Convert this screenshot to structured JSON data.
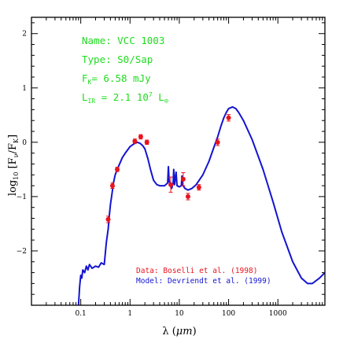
{
  "chart_data": {
    "type": "line",
    "xscale": "log",
    "xlim": [
      0.01,
      9000
    ],
    "ylim": [
      -3.0,
      2.3
    ],
    "xlabel": {
      "pre": "λ (",
      "unit": "μm",
      "post": ")"
    },
    "ylabel": {
      "pre": "log",
      "sub1": "10",
      "mid": " [F",
      "sub2": "ν",
      "slash": "/F",
      "sub3": "K",
      "post": "]"
    },
    "x_tick_labels": [
      {
        "value": 0.1,
        "label": "0.1"
      },
      {
        "value": 1,
        "label": "1"
      },
      {
        "value": 10,
        "label": "10"
      },
      {
        "value": 100,
        "label": "100"
      },
      {
        "value": 1000,
        "label": "1000"
      }
    ],
    "y_tick_labels": [
      {
        "value": 2,
        "label": "2"
      },
      {
        "value": 1,
        "label": "1"
      },
      {
        "value": 0,
        "label": "0"
      },
      {
        "value": -1,
        "label": "−1"
      },
      {
        "value": -2,
        "label": "−2"
      }
    ],
    "annotations": {
      "name": "Name: VCC 1003",
      "type": "Type: S0/Sap",
      "flux": {
        "pre": "F",
        "sub": "K",
        "post": "= 6.58 mJy"
      },
      "lir": {
        "pre": "L",
        "sub": "IR",
        "mid": " = 2.1 10",
        "sup": "7",
        "post": " L",
        "sub2": "⊙"
      }
    },
    "credits": {
      "data": "Data: Boselli et al. (1998)",
      "model": "Model: Devriendt et al. (1999)"
    },
    "colors": {
      "data": "#e8141e",
      "model": "#1414d2",
      "annot": "#1fdc1f",
      "axis": "#000000"
    },
    "series": [
      {
        "kind": "model",
        "x": [
          0.09,
          0.095,
          0.1,
          0.105,
          0.11,
          0.12,
          0.13,
          0.14,
          0.15,
          0.17,
          0.2,
          0.23,
          0.26,
          0.3,
          0.33,
          0.36,
          0.38,
          0.4,
          0.43,
          0.46,
          0.5,
          0.55,
          0.6,
          0.7,
          0.8,
          1.0,
          1.2,
          1.4,
          1.6,
          1.8,
          2.0,
          2.3,
          2.6,
          3.0,
          3.5,
          4.0,
          5.0,
          5.8,
          6.0,
          6.2,
          6.5,
          7.0,
          7.5,
          7.7,
          8.0,
          8.6,
          9.0,
          10.0,
          11.0,
          11.3,
          11.6,
          12.0,
          13.0,
          15.0,
          18.0,
          22.0,
          30.0,
          40.0,
          50.0,
          60.0,
          70.0,
          80.0,
          90.0,
          100.0,
          120.0,
          140.0,
          160.0,
          200.0,
          300.0,
          500.0,
          800.0,
          1200.0,
          2000.0,
          3000.0,
          4000.0,
          5000.0,
          7000.0,
          9000.0
        ],
        "y": [
          -3.0,
          -2.65,
          -2.45,
          -2.5,
          -2.35,
          -2.4,
          -2.28,
          -2.35,
          -2.25,
          -2.32,
          -2.28,
          -2.3,
          -2.22,
          -2.25,
          -1.85,
          -1.6,
          -1.35,
          -1.15,
          -0.95,
          -0.75,
          -0.6,
          -0.5,
          -0.42,
          -0.28,
          -0.2,
          -0.08,
          -0.03,
          0.0,
          -0.02,
          -0.06,
          -0.12,
          -0.3,
          -0.5,
          -0.7,
          -0.78,
          -0.8,
          -0.8,
          -0.75,
          -0.45,
          -0.7,
          -0.8,
          -0.85,
          -0.75,
          -0.5,
          -0.78,
          -0.55,
          -0.8,
          -0.82,
          -0.8,
          -0.62,
          -0.78,
          -0.8,
          -0.85,
          -0.88,
          -0.85,
          -0.78,
          -0.6,
          -0.35,
          -0.1,
          0.1,
          0.3,
          0.45,
          0.55,
          0.62,
          0.65,
          0.62,
          0.55,
          0.4,
          0.05,
          -0.5,
          -1.1,
          -1.65,
          -2.2,
          -2.5,
          -2.6,
          -2.6,
          -2.5,
          -2.4
        ]
      },
      {
        "kind": "data",
        "x": [
          0.36,
          0.44,
          0.55,
          1.25,
          1.65,
          2.2,
          6.7,
          12.0,
          15.0,
          25.0,
          60.0,
          100.0
        ],
        "y": [
          -1.42,
          -0.8,
          -0.5,
          0.02,
          0.1,
          0.0,
          -0.78,
          -0.68,
          -1.0,
          -0.83,
          0.0,
          0.45
        ],
        "err": [
          0.06,
          0.05,
          0.04,
          0.04,
          0.04,
          0.04,
          0.14,
          0.12,
          0.06,
          0.05,
          0.06,
          0.06
        ]
      }
    ]
  }
}
